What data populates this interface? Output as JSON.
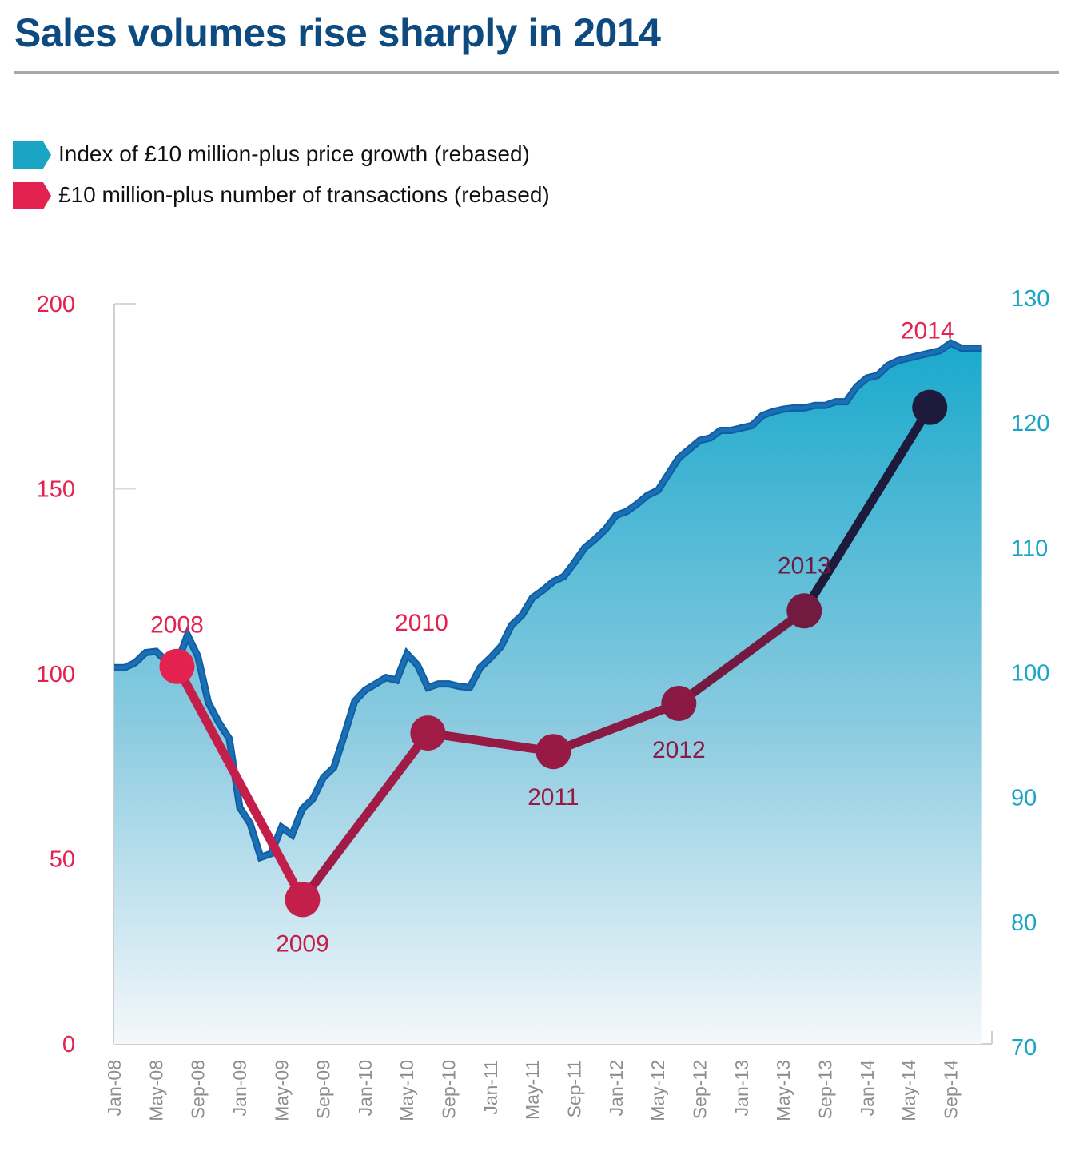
{
  "title": "Sales volumes rise sharply in 2014",
  "legend": [
    {
      "label": "Index of £10 million-plus price growth (rebased)",
      "color": "#1aa5c4"
    },
    {
      "label": "£10 million-plus number of transactions (rebased)",
      "color": "#e3224f"
    }
  ],
  "chart_data": {
    "type": "line",
    "title": "Sales volumes rise sharply in 2014",
    "xlabel": "",
    "ylabel_left": "",
    "ylabel_right": "",
    "grid": false,
    "legend_position": "top-left",
    "x_tick_labels": [
      "Jan-08",
      "May-08",
      "Sep-08",
      "Jan-09",
      "May-09",
      "Sep-09",
      "Jan-10",
      "May-10",
      "Sep-10",
      "Jan-11",
      "May-11",
      "Sep-11",
      "Jan-12",
      "May-12",
      "Sep-12",
      "Jan-13",
      "May-13",
      "Sep-13",
      "Jan-14",
      "May-14",
      "Sep-14"
    ],
    "x_range_months": [
      0,
      84
    ],
    "y_left": {
      "range": [
        0,
        200
      ],
      "ticks": [
        "0",
        "50",
        "100",
        "150",
        "200"
      ],
      "color": "#e3224f"
    },
    "y_right": {
      "range": [
        70,
        130
      ],
      "ticks": [
        "70",
        "80",
        "90",
        "100",
        "110",
        "120",
        "130"
      ],
      "color": "#1aa5c4"
    },
    "series": [
      {
        "name": "Index of £10 million-plus price growth (rebased)",
        "axis": "right",
        "type": "area",
        "color": "#1a6fb5",
        "fill_top": "#1aa9cc",
        "fill_bottom": "#f4f8fb",
        "x_months": [
          0,
          1,
          2,
          3,
          4,
          5,
          6,
          7,
          8,
          9,
          10,
          11,
          12,
          13,
          14,
          15,
          16,
          17,
          18,
          19,
          20,
          21,
          22,
          23,
          24,
          25,
          26,
          27,
          28,
          29,
          30,
          31,
          32,
          33,
          34,
          35,
          36,
          37,
          38,
          39,
          40,
          41,
          42,
          43,
          44,
          45,
          46,
          47,
          48,
          49,
          50,
          51,
          52,
          53,
          54,
          55,
          56,
          57,
          58,
          59,
          60,
          61,
          62,
          63,
          64,
          65,
          66,
          67,
          68,
          69,
          70,
          71,
          72,
          73,
          74,
          75,
          76,
          77,
          78,
          79,
          80,
          81,
          82,
          83
        ],
        "values": [
          100.4,
          100.4,
          100.8,
          101.6,
          101.7,
          100.9,
          100.7,
          103.0,
          101.3,
          97.6,
          96.0,
          94.7,
          89.2,
          87.9,
          85.2,
          85.5,
          87.6,
          87.0,
          89.1,
          89.9,
          91.6,
          92.4,
          95.0,
          97.7,
          98.6,
          99.1,
          99.6,
          99.4,
          101.5,
          100.6,
          98.8,
          99.1,
          99.1,
          98.9,
          98.8,
          100.4,
          101.2,
          102.1,
          103.8,
          104.6,
          106.0,
          106.6,
          107.3,
          107.7,
          108.8,
          110.0,
          110.7,
          111.5,
          112.6,
          112.9,
          113.5,
          114.2,
          114.6,
          115.9,
          117.2,
          117.9,
          118.6,
          118.8,
          119.4,
          119.4,
          119.6,
          119.8,
          120.6,
          120.9,
          121.1,
          121.2,
          121.2,
          121.4,
          121.4,
          121.7,
          121.7,
          122.9,
          123.6,
          123.8,
          124.6,
          125.0,
          125.2,
          125.4,
          125.6,
          125.8,
          126.4,
          126.0,
          126.0,
          126.0
        ]
      },
      {
        "name": "£10 million-plus number of transactions (rebased)",
        "axis": "left",
        "type": "line-markers",
        "points": [
          {
            "label": "2008",
            "x_month": 6,
            "value": 102
          },
          {
            "label": "2009",
            "x_month": 18,
            "value": 39
          },
          {
            "label": "2010",
            "x_month": 30,
            "value": 84
          },
          {
            "label": "2011",
            "x_month": 42,
            "value": 79
          },
          {
            "label": "2012",
            "x_month": 54,
            "value": 92
          },
          {
            "label": "2013",
            "x_month": 66,
            "value": 117
          },
          {
            "label": "2014",
            "x_month": 78,
            "value": 172
          }
        ],
        "colors": [
          "#e3224f",
          "#c41f4a",
          "#a01c46",
          "#961a44",
          "#8a1a43",
          "#731a40",
          "#1e1a3c"
        ]
      }
    ],
    "annotations": [
      {
        "text": "2008",
        "color": "#e3224f",
        "position": "above"
      },
      {
        "text": "2009",
        "color": "#c41f4a",
        "position": "below"
      },
      {
        "text": "2010",
        "color": "#e3224f",
        "position": "above"
      },
      {
        "text": "2011",
        "color": "#961a44",
        "position": "below"
      },
      {
        "text": "2012",
        "color": "#8a1a43",
        "position": "below"
      },
      {
        "text": "2013",
        "color": "#6b1a40",
        "position": "above"
      },
      {
        "text": "2014",
        "color": "#e3224f",
        "position": "above"
      }
    ]
  }
}
